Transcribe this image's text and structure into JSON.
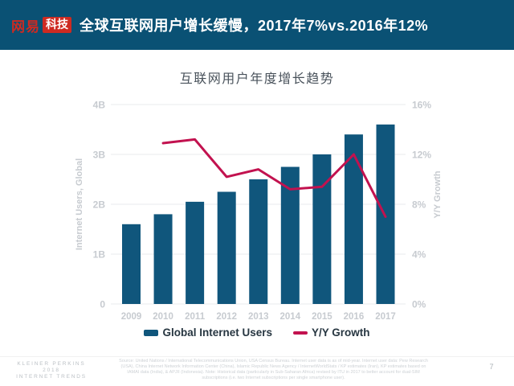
{
  "header": {
    "brand": "网易",
    "brand_badge": "科技",
    "title": "全球互联网用户增长缓慢，2017年7%vs.2016年12%"
  },
  "chart_data": {
    "type": "bar",
    "title": "互联网用户年度增长趋势",
    "categories": [
      "2009",
      "2010",
      "2011",
      "2012",
      "2013",
      "2014",
      "2015",
      "2016",
      "2017"
    ],
    "series": [
      {
        "name": "Global Internet Users",
        "type": "bar",
        "axis": "left",
        "unit": "billions",
        "color": "#10567C",
        "values": [
          1.6,
          1.8,
          2.05,
          2.25,
          2.5,
          2.75,
          3.0,
          3.4,
          3.6
        ]
      },
      {
        "name": "Y/Y Growth",
        "type": "line",
        "axis": "right",
        "unit": "%",
        "color": "#C2124F",
        "values": [
          null,
          12.9,
          13.2,
          10.2,
          10.8,
          9.2,
          9.4,
          12,
          7
        ]
      }
    ],
    "left_axis": {
      "label": "Internet Users, Global",
      "ticks": [
        "0",
        "1B",
        "2B",
        "3B",
        "4B"
      ],
      "min": 0,
      "max": 4
    },
    "right_axis": {
      "label": "Y/Y Growth",
      "ticks": [
        "0%",
        "4%",
        "8%",
        "12%",
        "16%"
      ],
      "min": 0,
      "max": 16
    },
    "grid": true,
    "legend_position": "bottom"
  },
  "footer": {
    "brand": [
      "KLEINER PERKINS",
      "2018",
      "INTERNET TRENDS"
    ],
    "source": "Source: United Nations / International Telecommunications Union, USA Census Bureau. Internet user data is as of mid-year. Internet user data: Pew Research (USA), China Internet Network Information Center (China), Islamic Republic News Agency / InternetWorldStats / KP estimates (Iran), KP estimates based on IAMAI data (India), & APJII (Indonesia). Note: Historical data (particularly in Sub-Saharan Africa) revised by ITU in 2017 to better account for dual-SIM subscriptions (i.e. two Internet subscriptions per single smartphone user).",
    "page_number": "7"
  },
  "colors": {
    "header_bg": "#0A5174",
    "brand_red": "#CE2A21",
    "bar": "#10567C",
    "line": "#C2124F",
    "grid": "#E9EBED",
    "tick_label": "#C7CBD0",
    "chart_title_text": "#49525B",
    "legend_text": "#273641"
  }
}
